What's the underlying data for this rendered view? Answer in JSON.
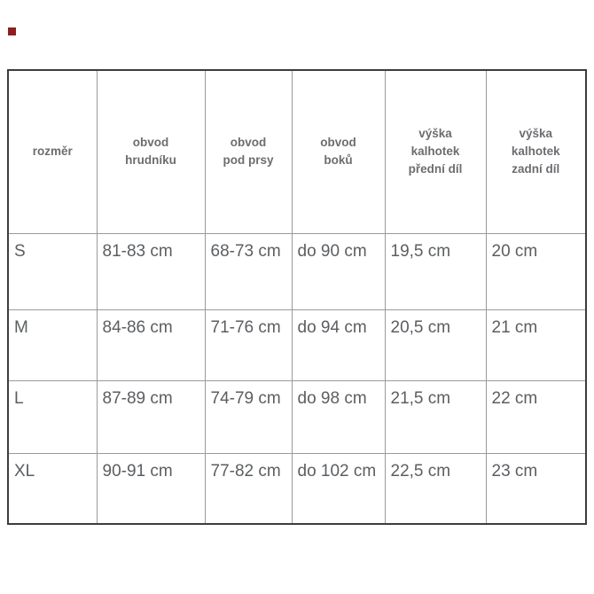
{
  "page": {
    "background": "#ffffff",
    "marker_color": "#8e1f1f",
    "text_color": "#5b5e61",
    "header_text_color": "#6b6d70",
    "grid_color": "#9a9a9a",
    "outer_border_color": "#3d3d3d"
  },
  "chart_data": {
    "type": "table",
    "columns": [
      {
        "label": "rozměr",
        "lines": [
          "rozměr"
        ]
      },
      {
        "label": "obvod hrudníku",
        "lines": [
          "obvod",
          "hrudníku"
        ]
      },
      {
        "label": "obvod pod prsy",
        "lines": [
          "obvod",
          "pod prsy"
        ]
      },
      {
        "label": "obvod boků",
        "lines": [
          "obvod",
          "boků"
        ]
      },
      {
        "label": "výška kalhotek přední díl",
        "lines": [
          "výška",
          "kalhotek",
          "přední díl"
        ]
      },
      {
        "label": "výška kalhotek zadní díl",
        "lines": [
          "výška",
          "kalhotek",
          "zadní díl"
        ]
      }
    ],
    "rows": [
      [
        "S",
        "81-83 cm",
        "68-73 cm",
        "do 90 cm",
        "19,5 cm",
        "20 cm"
      ],
      [
        "M",
        "84-86 cm",
        "71-76 cm",
        "do 94 cm",
        "20,5 cm",
        "21 cm"
      ],
      [
        "L",
        "87-89 cm",
        "74-79 cm",
        "do 98 cm",
        "21,5 cm",
        "22 cm"
      ],
      [
        "XL",
        "90-91 cm",
        "77-82 cm",
        "do 102 cm",
        "22,5 cm",
        "23 cm"
      ]
    ]
  }
}
